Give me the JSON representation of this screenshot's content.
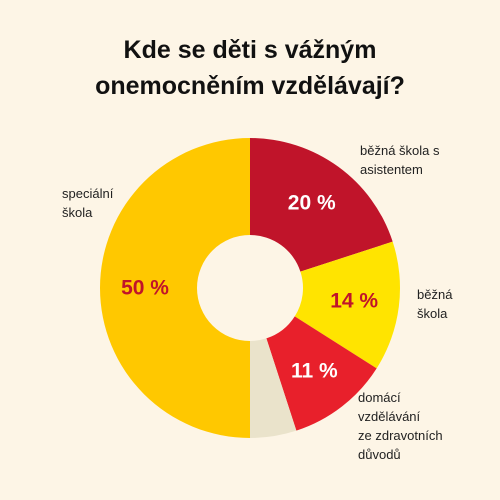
{
  "title_lines": [
    "Kde se děti s vážným",
    "onemocněním vzdělávají?"
  ],
  "chart_data": {
    "type": "pie",
    "donut": true,
    "title": "Kde se děti s vážným onemocněním vzdělávají?",
    "start": "top, clockwise",
    "slices": [
      {
        "label_lines": [
          "běžná škola s",
          "asistentem"
        ],
        "value": 20,
        "value_label": "20 %",
        "color": "#c0142a",
        "value_color": "#ffffff"
      },
      {
        "label_lines": [
          "běžná",
          "škola"
        ],
        "value": 14,
        "value_label": "14 %",
        "color": "#ffe400",
        "value_color": "#c0142a"
      },
      {
        "label_lines": [
          "domácí",
          "vzdělávání",
          "ze zdravotních",
          "důvodů"
        ],
        "value": 11,
        "value_label": "11 %",
        "color": "#e8202b",
        "value_color": "#ffffff"
      },
      {
        "label_lines": [],
        "value": 5,
        "value_label": "",
        "color": "#eae3cb",
        "value_color": "#ffffff"
      },
      {
        "label_lines": [
          "speciální",
          "škola"
        ],
        "value": 50,
        "value_label": "50 %",
        "color": "#ffc800",
        "value_color": "#c0142a"
      }
    ]
  }
}
